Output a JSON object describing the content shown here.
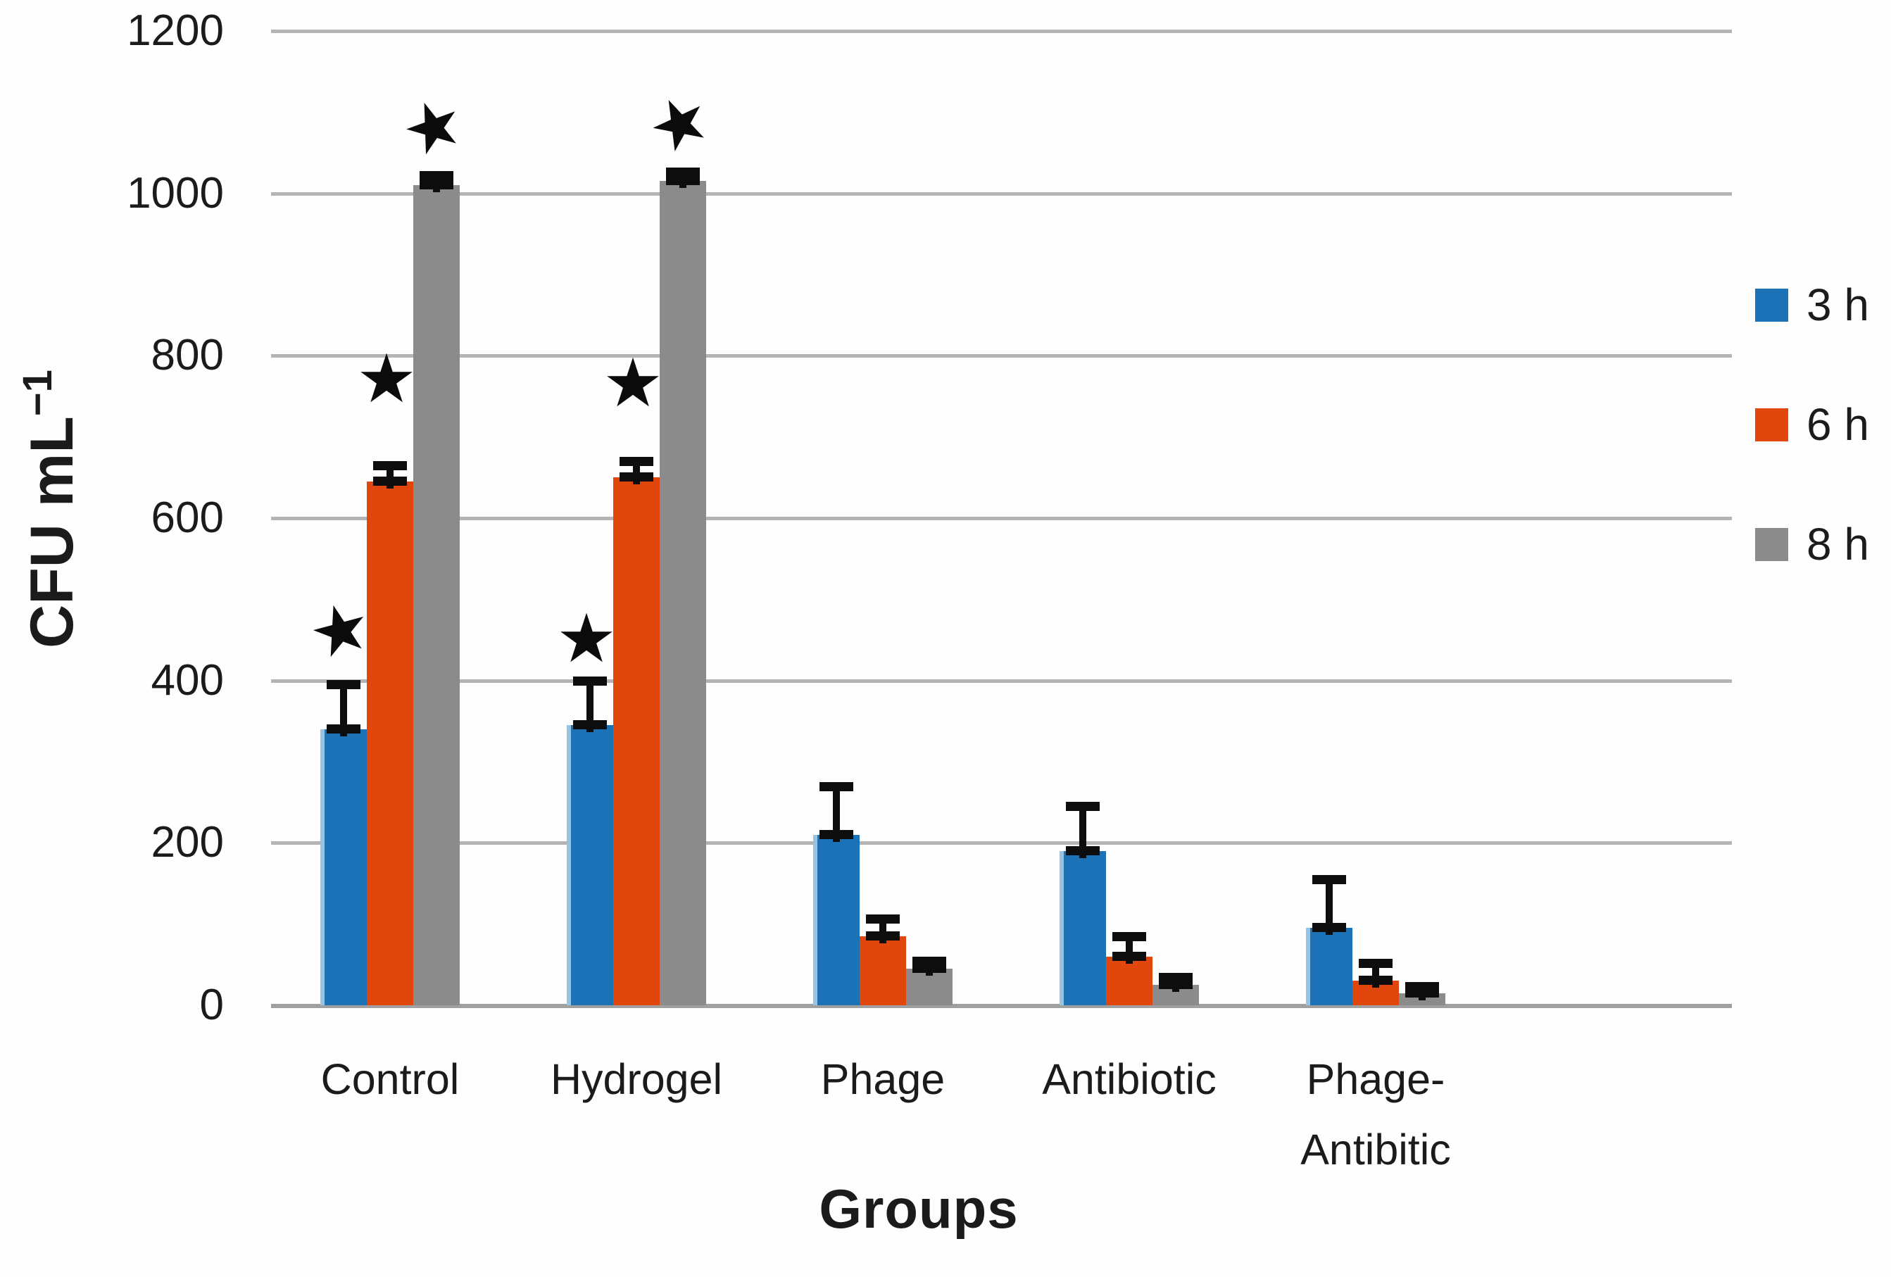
{
  "figure": {
    "x_title": "Groups",
    "y_title_base": "CFU mL",
    "y_title_sup": "−1"
  },
  "chart_data": {
    "type": "bar",
    "title": "",
    "xlabel": "Groups",
    "ylabel": "CFU mL⁻¹",
    "ylim": [
      0,
      1200
    ],
    "yticks": [
      0,
      200,
      400,
      600,
      800,
      1000,
      1200
    ],
    "grid": "horizontal",
    "legend_position": "right",
    "gridline_color": "#b4b4b4",
    "error_bar_color": "#0d0d0d",
    "star_glyph": "★",
    "categories": [
      "Control",
      "Hydrogel",
      "Phage",
      "Antibiotic",
      "Phage-Antibitic"
    ],
    "category_label_lines": [
      [
        "Control"
      ],
      [
        "Hydrogel"
      ],
      [
        "Phage"
      ],
      [
        "Antibiotic"
      ],
      [
        "Phage-",
        "Antibitic"
      ]
    ],
    "series": [
      {
        "name": "3 h",
        "color": "#1b72b6",
        "values": [
          340,
          345,
          210,
          190,
          95
        ],
        "err_up": [
          55,
          55,
          60,
          55,
          60
        ]
      },
      {
        "name": "6 h",
        "color": "#e1470c",
        "values": [
          645,
          650,
          85,
          60,
          30
        ],
        "err_up": [
          20,
          20,
          22,
          25,
          22
        ]
      },
      {
        "name": "8 h",
        "color": "#8b8b8b",
        "values": [
          1010,
          1015,
          45,
          25,
          15
        ],
        "err_up": [
          12,
          12,
          10,
          10,
          8
        ]
      }
    ],
    "significance_stars": [
      {
        "category": "Control",
        "series": "3 h",
        "y": 460,
        "tilt": -15
      },
      {
        "category": "Control",
        "series": "6 h",
        "y": 770,
        "tilt": 0
      },
      {
        "category": "Control",
        "series": "8 h",
        "y": 1080,
        "tilt": -20
      },
      {
        "category": "Hydrogel",
        "series": "3 h",
        "y": 450,
        "tilt": 0
      },
      {
        "category": "Hydrogel",
        "series": "6 h",
        "y": 765,
        "tilt": 0
      },
      {
        "category": "Hydrogel",
        "series": "8 h",
        "y": 1085,
        "tilt": -25
      }
    ]
  }
}
